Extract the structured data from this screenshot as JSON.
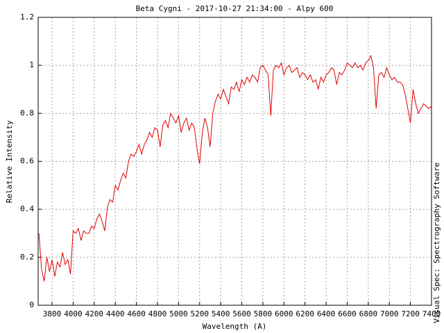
{
  "chart_data": {
    "type": "line",
    "title": "Beta Cygni - 2017-10-27 21:34:00 - Alpy 600",
    "x_label": "Wavelength (A)",
    "y_label": "Relative Intensity",
    "side_note": "Visual Spec: Spectrography Software",
    "xlim": [
      3668,
      7400
    ],
    "ylim": [
      0,
      1.2
    ],
    "xticks": [
      3800,
      4000,
      4200,
      4400,
      4600,
      4800,
      5000,
      5200,
      5400,
      5600,
      5800,
      6000,
      6200,
      6400,
      6600,
      6800,
      7000,
      7200,
      7400
    ],
    "yticks": [
      0,
      0.2,
      0.4,
      0.6,
      0.8,
      1,
      1.2
    ],
    "grid": true,
    "x": [
      3675,
      3700,
      3725,
      3750,
      3775,
      3800,
      3825,
      3850,
      3875,
      3900,
      3925,
      3950,
      3975,
      4000,
      4025,
      4050,
      4075,
      4100,
      4125,
      4150,
      4175,
      4200,
      4225,
      4250,
      4275,
      4300,
      4325,
      4350,
      4375,
      4400,
      4425,
      4450,
      4475,
      4500,
      4525,
      4550,
      4575,
      4600,
      4625,
      4650,
      4675,
      4700,
      4725,
      4750,
      4775,
      4800,
      4825,
      4850,
      4875,
      4900,
      4925,
      4950,
      4975,
      5000,
      5025,
      5050,
      5075,
      5100,
      5125,
      5150,
      5175,
      5200,
      5225,
      5250,
      5275,
      5300,
      5325,
      5350,
      5375,
      5400,
      5425,
      5450,
      5475,
      5500,
      5525,
      5550,
      5575,
      5600,
      5625,
      5650,
      5675,
      5700,
      5725,
      5750,
      5775,
      5800,
      5825,
      5850,
      5875,
      5900,
      5925,
      5950,
      5975,
      6000,
      6025,
      6050,
      6075,
      6100,
      6125,
      6150,
      6175,
      6200,
      6225,
      6250,
      6275,
      6300,
      6325,
      6350,
      6375,
      6400,
      6425,
      6450,
      6475,
      6500,
      6525,
      6550,
      6575,
      6600,
      6625,
      6650,
      6675,
      6700,
      6725,
      6750,
      6775,
      6800,
      6825,
      6850,
      6875,
      6900,
      6925,
      6950,
      6975,
      7000,
      7025,
      7050,
      7075,
      7100,
      7125,
      7150,
      7175,
      7200,
      7225,
      7250,
      7275,
      7300,
      7325,
      7350,
      7375,
      7400
    ],
    "series": [
      {
        "name": "Beta Cygni",
        "color": "#e00000",
        "values": [
          0.3,
          0.15,
          0.1,
          0.2,
          0.14,
          0.19,
          0.12,
          0.18,
          0.16,
          0.22,
          0.17,
          0.19,
          0.13,
          0.31,
          0.3,
          0.32,
          0.27,
          0.31,
          0.3,
          0.3,
          0.33,
          0.32,
          0.36,
          0.38,
          0.35,
          0.31,
          0.41,
          0.44,
          0.43,
          0.5,
          0.48,
          0.52,
          0.55,
          0.53,
          0.6,
          0.63,
          0.62,
          0.64,
          0.67,
          0.63,
          0.67,
          0.69,
          0.72,
          0.7,
          0.74,
          0.73,
          0.66,
          0.75,
          0.77,
          0.74,
          0.8,
          0.78,
          0.76,
          0.79,
          0.72,
          0.76,
          0.78,
          0.73,
          0.76,
          0.74,
          0.65,
          0.59,
          0.72,
          0.78,
          0.74,
          0.66,
          0.8,
          0.85,
          0.88,
          0.86,
          0.9,
          0.87,
          0.84,
          0.91,
          0.9,
          0.93,
          0.89,
          0.94,
          0.92,
          0.95,
          0.93,
          0.96,
          0.95,
          0.93,
          0.99,
          1.0,
          0.98,
          0.96,
          0.79,
          0.98,
          1.0,
          0.99,
          1.01,
          0.96,
          0.99,
          1.0,
          0.97,
          0.98,
          0.99,
          0.95,
          0.97,
          0.96,
          0.94,
          0.96,
          0.93,
          0.94,
          0.9,
          0.95,
          0.93,
          0.96,
          0.97,
          0.99,
          0.98,
          0.92,
          0.97,
          0.96,
          0.98,
          1.01,
          1.0,
          0.99,
          1.01,
          0.99,
          1.0,
          0.98,
          1.01,
          1.02,
          1.04,
          0.99,
          0.82,
          0.96,
          0.97,
          0.95,
          0.99,
          0.96,
          0.94,
          0.95,
          0.93,
          0.93,
          0.92,
          0.88,
          0.82,
          0.76,
          0.9,
          0.84,
          0.8,
          0.82,
          0.84,
          0.83,
          0.82,
          0.83
        ]
      }
    ]
  }
}
